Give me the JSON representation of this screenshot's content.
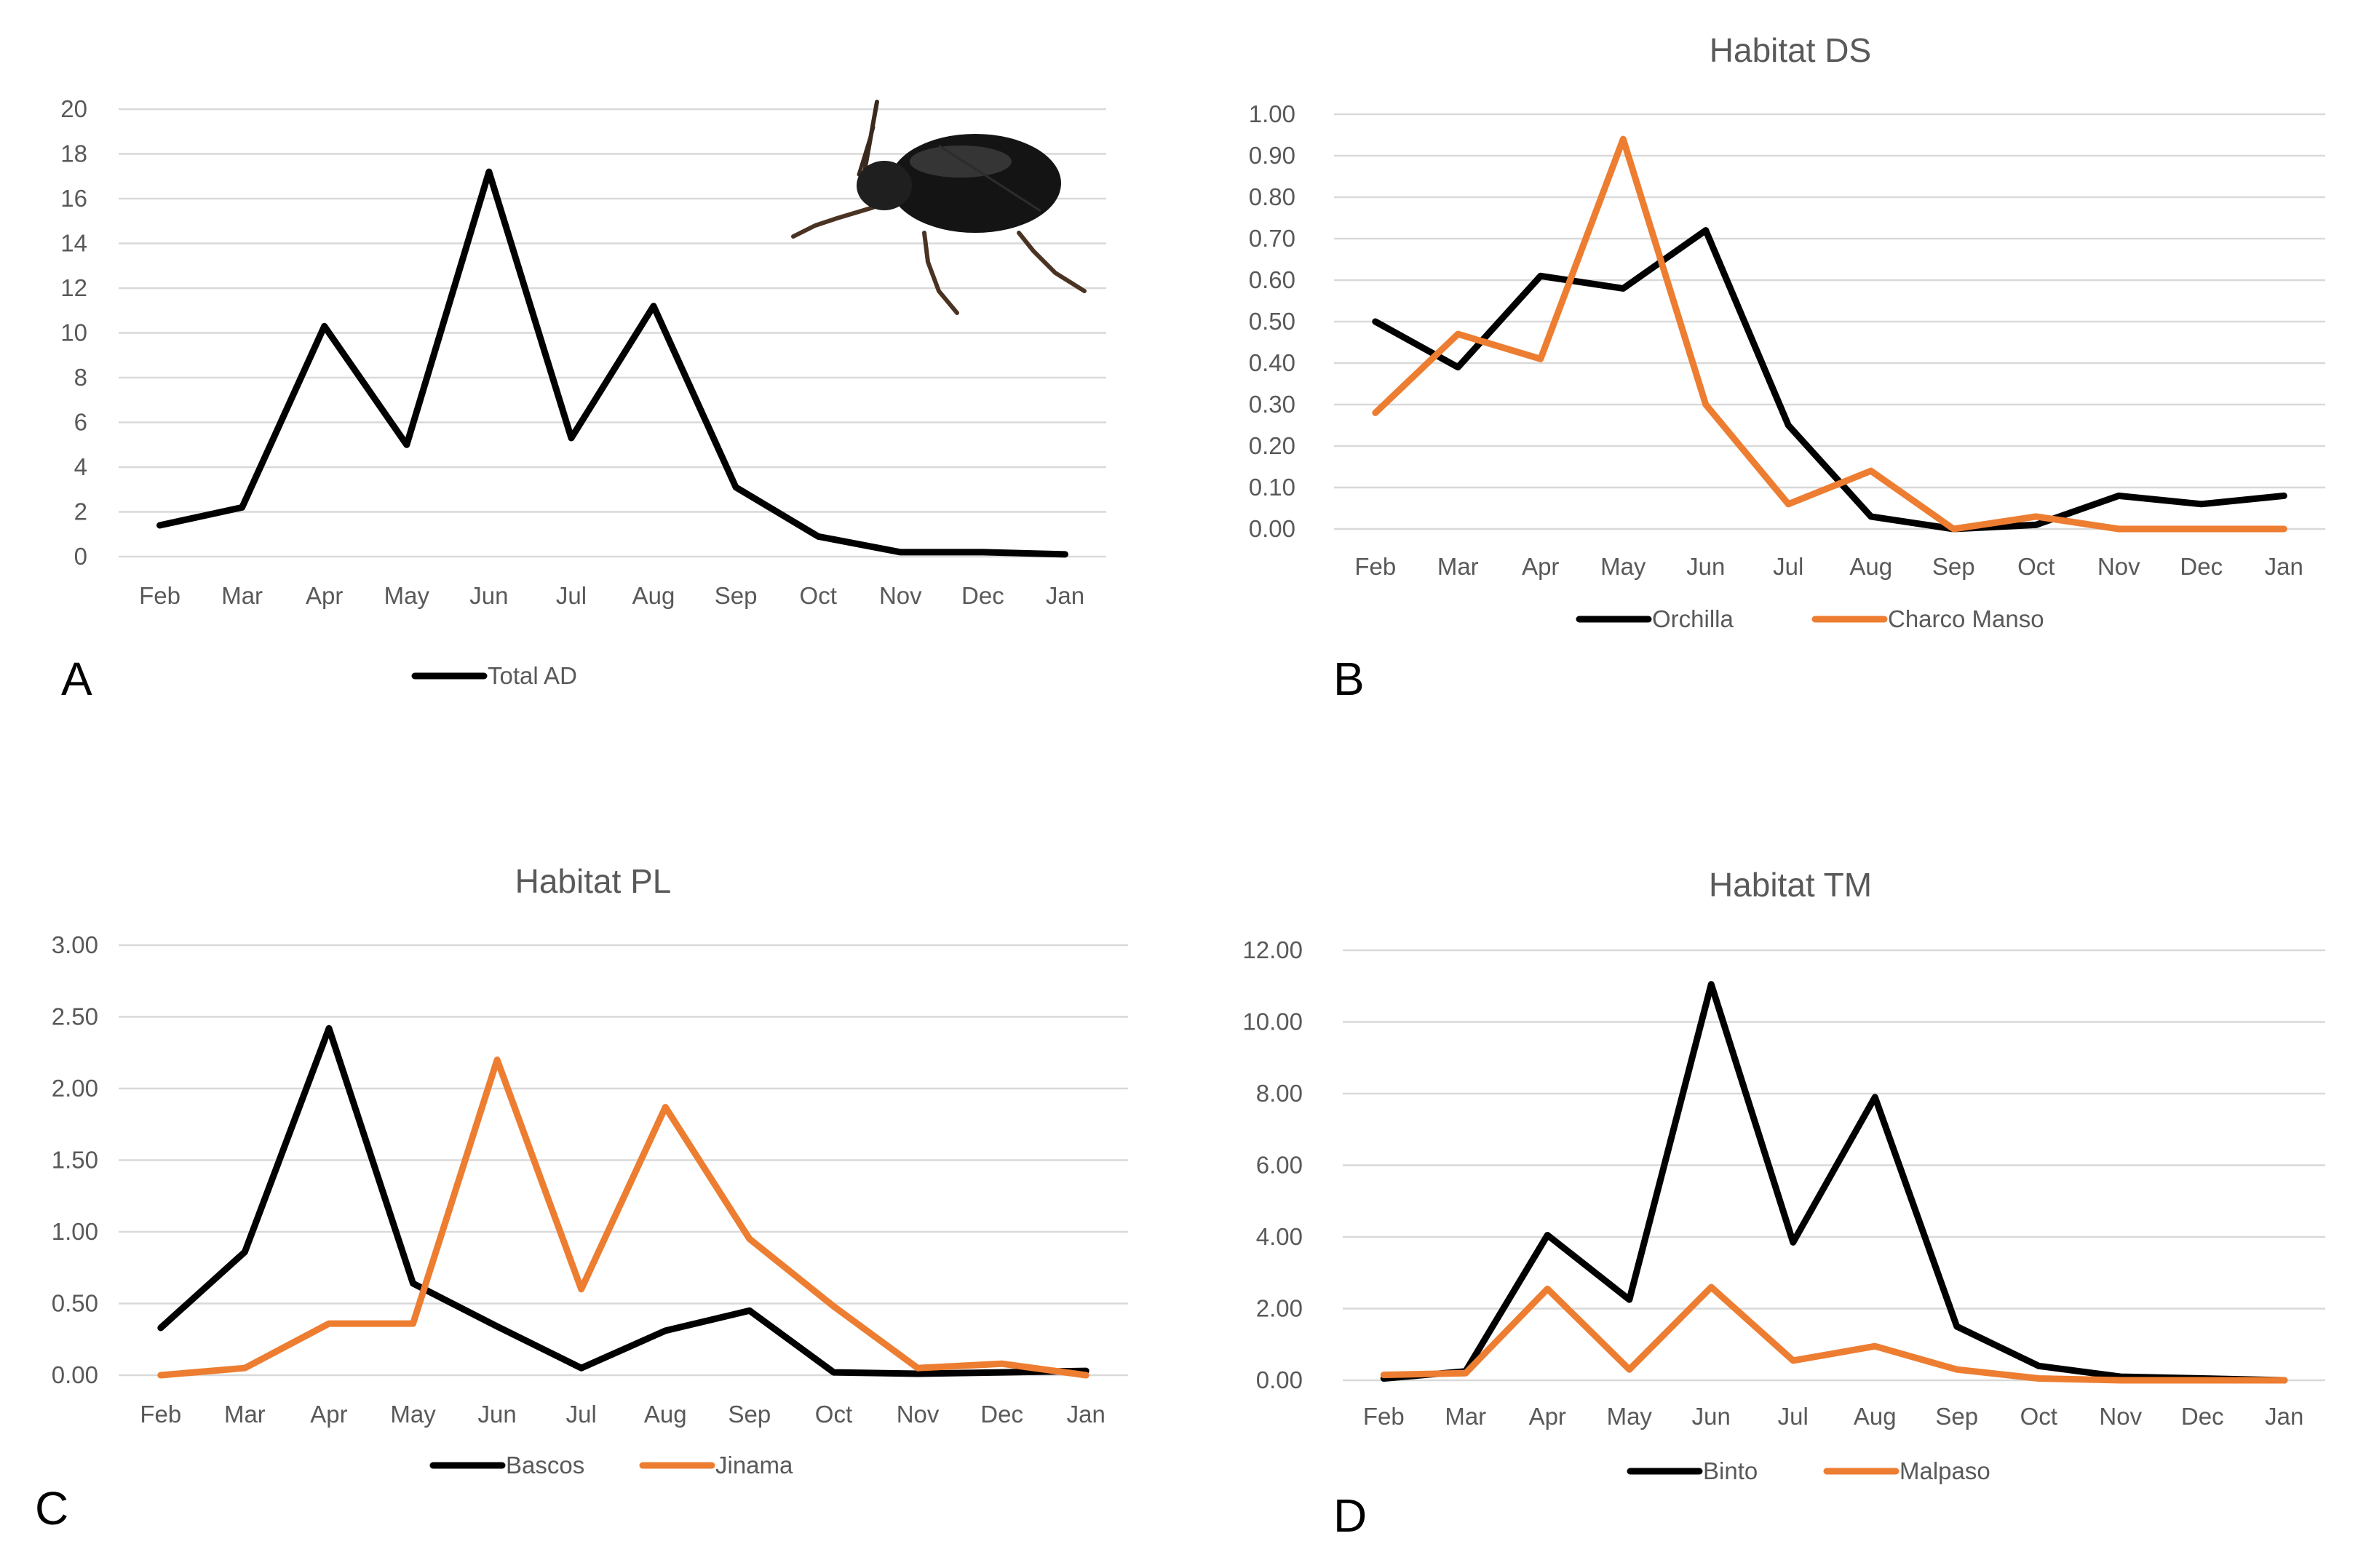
{
  "panels": [
    {
      "letter": "A"
    },
    {
      "letter": "B"
    },
    {
      "letter": "C"
    },
    {
      "letter": "D"
    }
  ],
  "colors": {
    "black_series": "#000000",
    "orange_series": "#ed7d31",
    "grid": "#d9d9d9",
    "text": "#595959"
  },
  "chart_data": [
    {
      "type": "line",
      "title": "",
      "categories": [
        "Feb",
        "Mar",
        "Apr",
        "May",
        "Jun",
        "Jul",
        "Aug",
        "Sep",
        "Oct",
        "Nov",
        "Dec",
        "Jan"
      ],
      "yticks": [
        "0",
        "2",
        "4",
        "6",
        "8",
        "10",
        "12",
        "14",
        "16",
        "18",
        "20"
      ],
      "ylim": [
        0,
        20
      ],
      "grid": true,
      "legend_position": "bottom",
      "series": [
        {
          "name": "Total AD",
          "color": "#000000",
          "values": [
            1.4,
            2.2,
            10.3,
            5.0,
            17.2,
            5.3,
            11.2,
            3.1,
            0.9,
            0.2,
            0.2,
            0.1
          ]
        }
      ]
    },
    {
      "type": "line",
      "title": "Habitat DS",
      "categories": [
        "Feb",
        "Mar",
        "Apr",
        "May",
        "Jun",
        "Jul",
        "Aug",
        "Sep",
        "Oct",
        "Nov",
        "Dec",
        "Jan"
      ],
      "yticks": [
        "0.00",
        "0.10",
        "0.20",
        "0.30",
        "0.40",
        "0.50",
        "0.60",
        "0.70",
        "0.80",
        "0.90",
        "1.00"
      ],
      "ylim": [
        0,
        1
      ],
      "grid": true,
      "legend_position": "bottom",
      "series": [
        {
          "name": "Orchilla",
          "color": "#000000",
          "values": [
            0.5,
            0.39,
            0.61,
            0.58,
            0.72,
            0.25,
            0.03,
            0.0,
            0.01,
            0.08,
            0.06,
            0.08
          ]
        },
        {
          "name": "Charco Manso",
          "color": "#ed7d31",
          "values": [
            0.28,
            0.47,
            0.41,
            0.94,
            0.3,
            0.06,
            0.14,
            0.0,
            0.03,
            0.0,
            0.0,
            0.0
          ]
        }
      ]
    },
    {
      "type": "line",
      "title": "Habitat PL",
      "categories": [
        "Feb",
        "Mar",
        "Apr",
        "May",
        "Jun",
        "Jul",
        "Aug",
        "Sep",
        "Oct",
        "Nov",
        "Dec",
        "Jan"
      ],
      "yticks": [
        "0.00",
        "0.50",
        "1.00",
        "1.50",
        "2.00",
        "2.50",
        "3.00"
      ],
      "ylim": [
        0,
        3
      ],
      "grid": true,
      "legend_position": "bottom",
      "series": [
        {
          "name": "Bascos",
          "color": "#000000",
          "values": [
            0.33,
            0.86,
            2.42,
            0.64,
            0.34,
            0.05,
            0.31,
            0.45,
            0.02,
            0.01,
            0.02,
            0.03
          ]
        },
        {
          "name": "Jinama",
          "color": "#ed7d31",
          "values": [
            0.0,
            0.05,
            0.36,
            0.36,
            2.2,
            0.6,
            1.87,
            0.95,
            0.48,
            0.05,
            0.08,
            0.0
          ]
        }
      ]
    },
    {
      "type": "line",
      "title": "Habitat TM",
      "categories": [
        "Feb",
        "Mar",
        "Apr",
        "May",
        "Jun",
        "Jul",
        "Aug",
        "Sep",
        "Oct",
        "Nov",
        "Dec",
        "Jan"
      ],
      "yticks": [
        "0.00",
        "2.00",
        "4.00",
        "6.00",
        "8.00",
        "10.00",
        "12.00"
      ],
      "ylim": [
        0,
        12
      ],
      "grid": true,
      "legend_position": "bottom",
      "series": [
        {
          "name": "Binto",
          "color": "#000000",
          "values": [
            0.05,
            0.25,
            4.05,
            2.25,
            11.05,
            3.85,
            7.9,
            1.5,
            0.4,
            0.1,
            0.05,
            0.0
          ]
        },
        {
          "name": "Malpaso",
          "color": "#ed7d31",
          "values": [
            0.15,
            0.2,
            2.55,
            0.3,
            2.6,
            0.55,
            0.95,
            0.3,
            0.05,
            0.0,
            0.0,
            0.0
          ]
        }
      ]
    }
  ]
}
